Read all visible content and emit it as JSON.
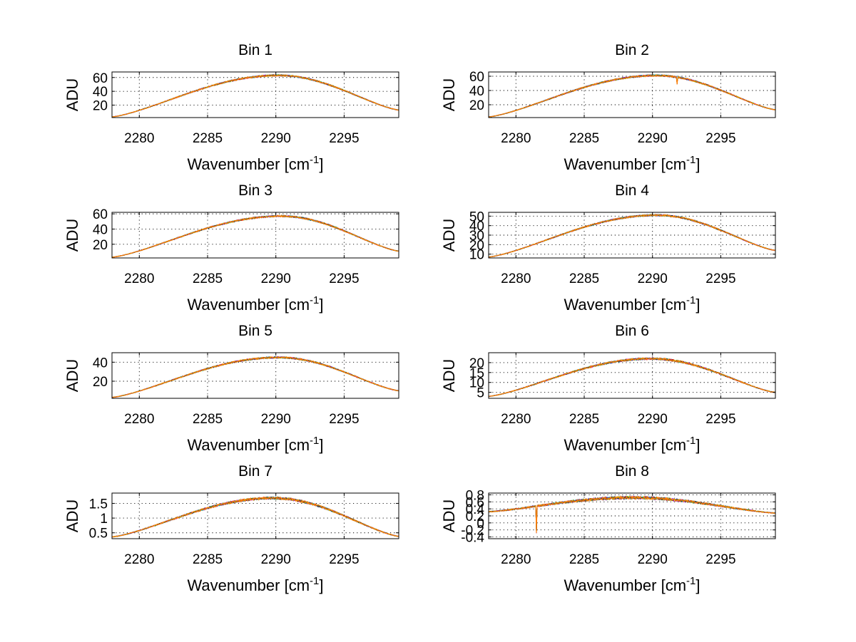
{
  "chart_data": [
    {
      "type": "line",
      "title": "Bin 1",
      "xlabel": "Wavenumber [cm",
      "xlabel_sup": "-1",
      "xlabel_end": "]",
      "ylabel": "ADU",
      "xlim": [
        2278,
        2299
      ],
      "ylim": [
        2,
        68
      ],
      "xticks": [
        2280,
        2285,
        2290,
        2295
      ],
      "yticks": [
        20,
        40,
        60
      ],
      "ytick_labels": [
        "20",
        "40",
        "60"
      ],
      "grid": true,
      "curve": {
        "peak": 63,
        "peak_x": 2290.2,
        "left_end": 3,
        "right_end": 13
      },
      "noise": 1.2,
      "dip": {
        "x": 2291.8,
        "depth": 0
      }
    },
    {
      "type": "line",
      "title": "Bin 2",
      "xlabel": "Wavenumber [cm",
      "xlabel_sup": "-1",
      "xlabel_end": "]",
      "ylabel": "ADU",
      "xlim": [
        2278,
        2299
      ],
      "ylim": [
        2,
        66
      ],
      "xticks": [
        2280,
        2285,
        2290,
        2295
      ],
      "yticks": [
        20,
        40,
        60
      ],
      "ytick_labels": [
        "20",
        "40",
        "60"
      ],
      "grid": true,
      "curve": {
        "peak": 61,
        "peak_x": 2290.3,
        "left_end": 3,
        "right_end": 13
      },
      "noise": 1.2,
      "dip": {
        "x": 2291.8,
        "depth": 9
      }
    },
    {
      "type": "line",
      "title": "Bin 3",
      "xlabel": "Wavenumber [cm",
      "xlabel_sup": "-1",
      "xlabel_end": "]",
      "ylabel": "ADU",
      "xlim": [
        2278,
        2299
      ],
      "ylim": [
        2,
        62
      ],
      "xticks": [
        2280,
        2285,
        2290,
        2295
      ],
      "yticks": [
        20,
        40,
        60
      ],
      "ytick_labels": [
        "20",
        "40",
        "60"
      ],
      "grid": true,
      "curve": {
        "peak": 57,
        "peak_x": 2290.4,
        "left_end": 3,
        "right_end": 11
      },
      "noise": 1.1,
      "dip": {
        "x": 2291.8,
        "depth": 0
      }
    },
    {
      "type": "line",
      "title": "Bin 4",
      "xlabel": "Wavenumber [cm",
      "xlabel_sup": "-1",
      "xlabel_end": "]",
      "ylabel": "ADU",
      "xlim": [
        2278,
        2299
      ],
      "ylim": [
        6,
        54
      ],
      "xticks": [
        2280,
        2285,
        2290,
        2295
      ],
      "yticks": [
        10,
        20,
        30,
        40,
        50
      ],
      "ytick_labels": [
        "10",
        "20",
        "30",
        "40",
        "50"
      ],
      "grid": true,
      "curve": {
        "peak": 51,
        "peak_x": 2290.3,
        "left_end": 7,
        "right_end": 14
      },
      "noise": 0.9,
      "dip": {
        "x": 2291.8,
        "depth": 0
      }
    },
    {
      "type": "line",
      "title": "Bin 5",
      "xlabel": "Wavenumber [cm",
      "xlabel_sup": "-1",
      "xlabel_end": "]",
      "ylabel": "ADU",
      "xlim": [
        2278,
        2299
      ],
      "ylim": [
        2,
        50
      ],
      "xticks": [
        2280,
        2285,
        2290,
        2295
      ],
      "yticks": [
        20,
        40
      ],
      "ytick_labels": [
        "20",
        "40"
      ],
      "grid": true,
      "curve": {
        "peak": 45,
        "peak_x": 2290.2,
        "left_end": 3,
        "right_end": 10
      },
      "noise": 0.9,
      "dip": {
        "x": 2291.8,
        "depth": 0
      }
    },
    {
      "type": "line",
      "title": "Bin 6",
      "xlabel": "Wavenumber [cm",
      "xlabel_sup": "-1",
      "xlabel_end": "]",
      "ylabel": "ADU",
      "xlim": [
        2278,
        2299
      ],
      "ylim": [
        2,
        25
      ],
      "xticks": [
        2280,
        2285,
        2290,
        2295
      ],
      "yticks": [
        5,
        10,
        15,
        20
      ],
      "ytick_labels": [
        "5",
        "10",
        "15",
        "20"
      ],
      "grid": true,
      "curve": {
        "peak": 22,
        "peak_x": 2289.9,
        "left_end": 3,
        "right_end": 5
      },
      "noise": 0.5,
      "dip": {
        "x": 2291.8,
        "depth": 0
      }
    },
    {
      "type": "line",
      "title": "Bin 7",
      "xlabel": "Wavenumber [cm",
      "xlabel_sup": "-1",
      "xlabel_end": "]",
      "ylabel": "ADU",
      "xlim": [
        2278,
        2299
      ],
      "ylim": [
        0.3,
        1.85
      ],
      "xticks": [
        2280,
        2285,
        2290,
        2295
      ],
      "yticks": [
        0.5,
        1,
        1.5
      ],
      "ytick_labels": [
        "0.5",
        "1",
        "1.5"
      ],
      "grid": true,
      "curve": {
        "peak": 1.68,
        "peak_x": 2289.8,
        "left_end": 0.36,
        "right_end": 0.38
      },
      "noise": 0.04,
      "dip": {
        "x": 2291.8,
        "depth": 0
      }
    },
    {
      "type": "line",
      "title": "Bin 8",
      "xlabel": "Wavenumber [cm",
      "xlabel_sup": "-1",
      "xlabel_end": "]",
      "ylabel": "ADU",
      "xlim": [
        2278,
        2299
      ],
      "ylim": [
        -0.45,
        0.85
      ],
      "xticks": [
        2280,
        2285,
        2290,
        2295
      ],
      "yticks": [
        -0.4,
        -0.2,
        0,
        0.2,
        0.4,
        0.6,
        0.8
      ],
      "ytick_labels": [
        "-0.4",
        "-0.2",
        "0",
        "0.2",
        "0.4",
        "0.6",
        "0.8"
      ],
      "grid": true,
      "curve": {
        "peak": 0.72,
        "peak_x": 2288.5,
        "left_end": 0.32,
        "right_end": 0.28
      },
      "noise": 0.04,
      "dip": {
        "x": 2281.5,
        "depth": 0.75
      }
    }
  ],
  "series_colors": [
    "#0000ff",
    "#008000",
    "#ff0000",
    "#00bfbf",
    "#bf00bf",
    "#bfbf00",
    "#3f3f3f",
    "#ff8000"
  ]
}
